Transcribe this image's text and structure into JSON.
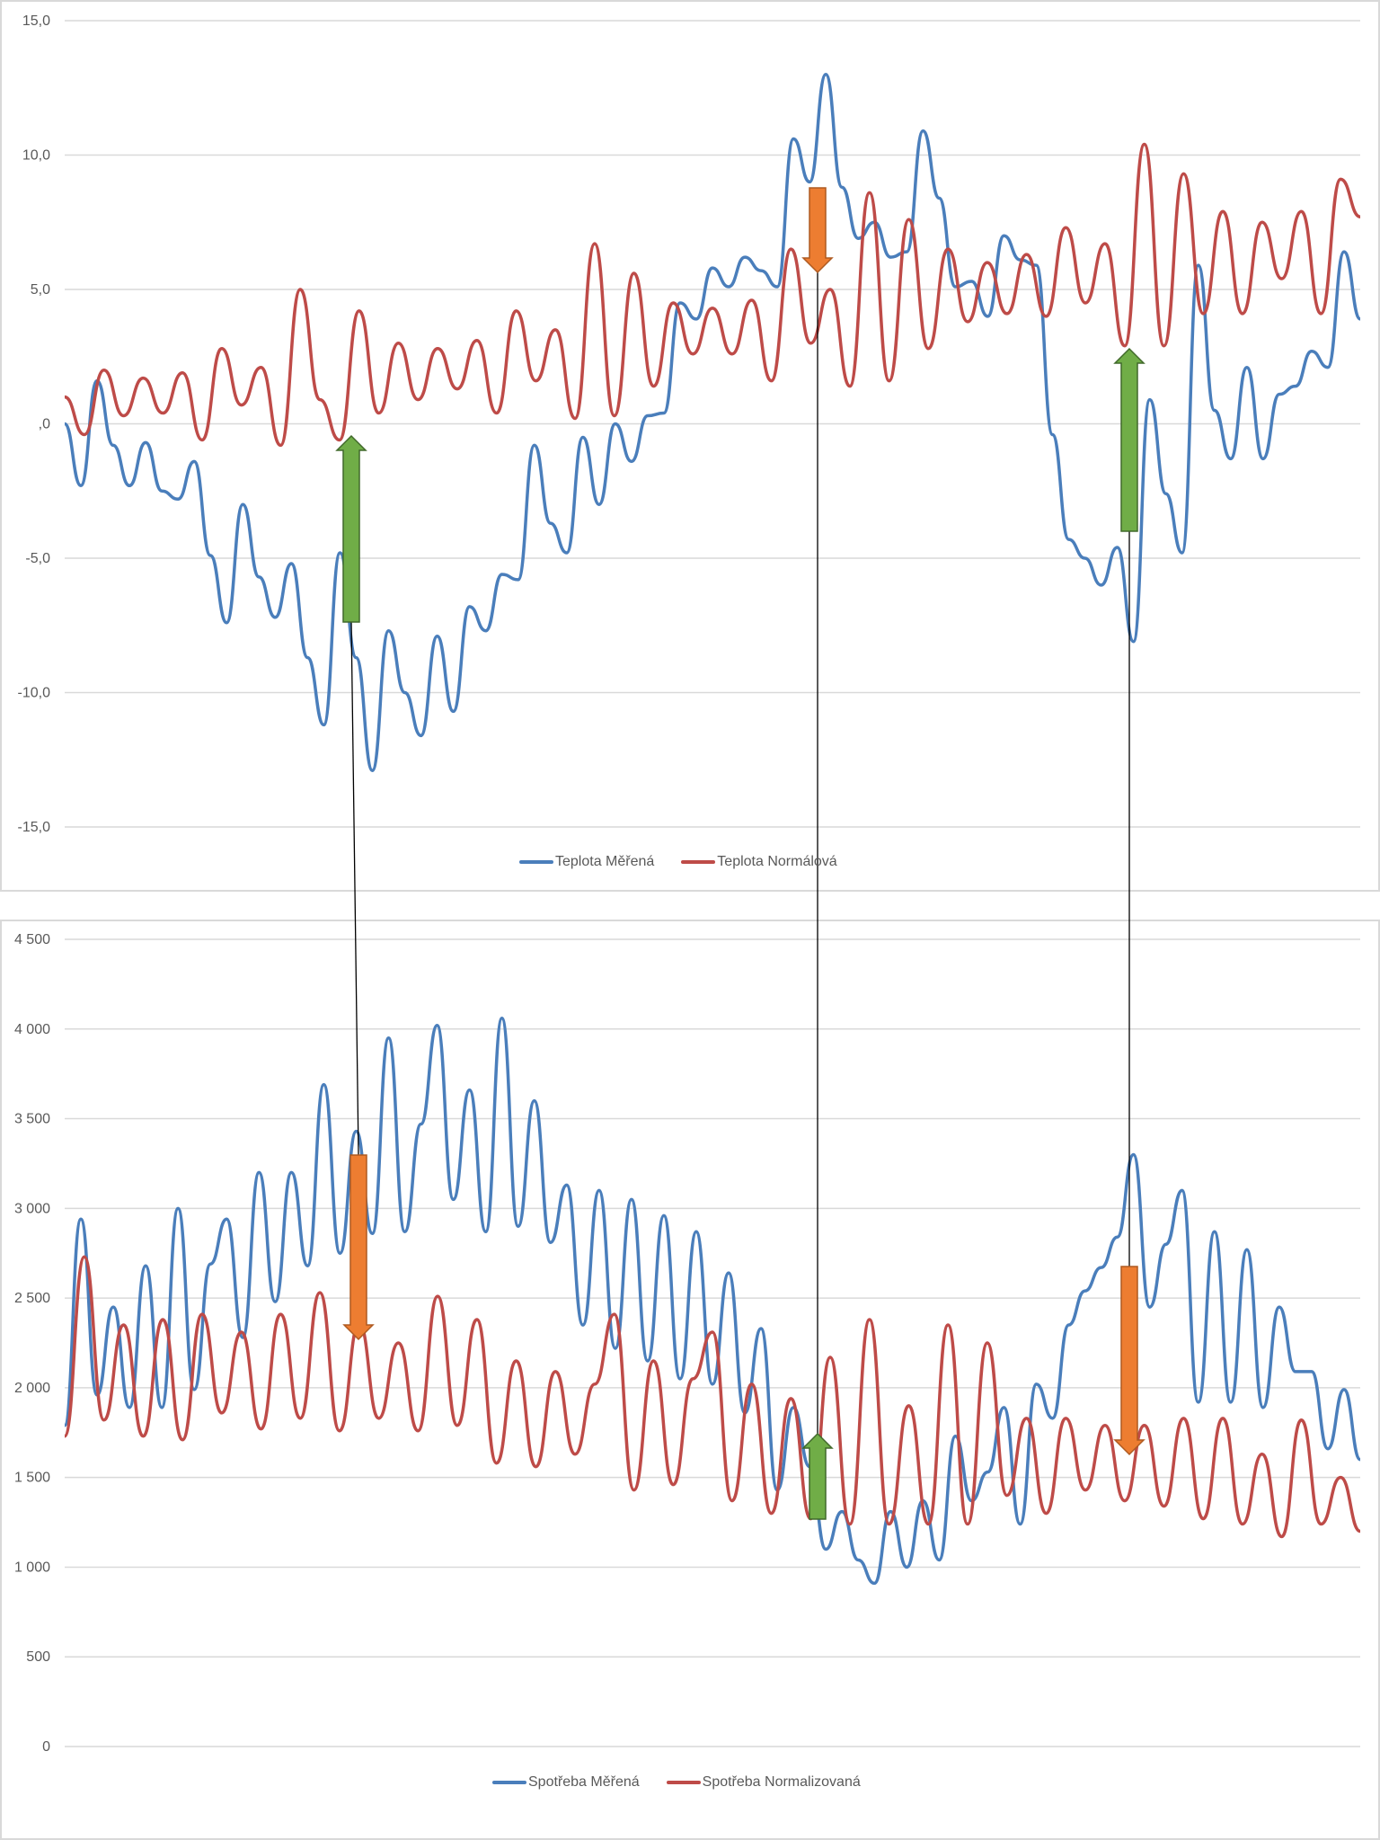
{
  "chart_data": [
    {
      "type": "line",
      "title": "",
      "xlabel": "",
      "ylabel": "",
      "ylim": [
        -15,
        15
      ],
      "yticks": [
        "15,0",
        "10,0",
        "5,0",
        ",0",
        "-5,0",
        "-10,0",
        "-15,0"
      ],
      "ytick_values": [
        15,
        10,
        5,
        0,
        -5,
        -10,
        -15
      ],
      "grid": true,
      "legend": "bottom",
      "series": [
        {
          "name": "Teplota Měřená",
          "color": "#4a7ebb",
          "values": [
            0,
            -2.3,
            1.6,
            -0.8,
            -2.3,
            -0.7,
            -2.5,
            -2.8,
            -1.4,
            -4.9,
            -7.4,
            -3,
            -5.7,
            -7.2,
            -5.2,
            -8.7,
            -11.2,
            -4.8,
            -8.7,
            -12.9,
            -7.7,
            -10,
            -11.6,
            -7.9,
            -10.7,
            -6.8,
            -7.7,
            -5.6,
            -5.8,
            -0.8,
            -3.7,
            -4.8,
            -0.5,
            -3,
            0,
            -1.4,
            0.3,
            0.4,
            4.5,
            3.9,
            5.8,
            5.1,
            6.2,
            5.7,
            5.1,
            10.6,
            9,
            13,
            8.8,
            6.9,
            7.5,
            6.2,
            6.4,
            10.9,
            8.4,
            5.1,
            5.3,
            4,
            7,
            6.1,
            5.9,
            -0.4,
            -4.3,
            -5,
            -6,
            -4.6,
            -8.1,
            0.9,
            -2.6,
            -4.8,
            5.9,
            0.5,
            -1.3,
            2.1,
            -1.3,
            1.1,
            1.4,
            2.7,
            2.1,
            6.4,
            3.9
          ]
        },
        {
          "name": "Teplota Normálová",
          "color": "#be4b48",
          "values": [
            1,
            -0.4,
            2,
            0.3,
            1.7,
            0.4,
            1.9,
            -0.6,
            2.8,
            0.7,
            2.1,
            -0.8,
            5,
            0.9,
            -0.6,
            4.2,
            0.4,
            3,
            0.9,
            2.8,
            1.3,
            3.1,
            0.4,
            4.2,
            1.6,
            3.5,
            0.2,
            6.7,
            0.3,
            5.6,
            1.4,
            4.5,
            2.6,
            4.3,
            2.6,
            4.6,
            1.6,
            6.5,
            3,
            5,
            1.4,
            8.6,
            1.6,
            7.6,
            2.8,
            6.5,
            3.8,
            6,
            4.1,
            6.3,
            4,
            7.3,
            4.5,
            6.7,
            2.9,
            10.4,
            2.9,
            9.3,
            4.1,
            7.9,
            4.1,
            7.5,
            5.4,
            7.9,
            4.1,
            9.1,
            7.7
          ]
        }
      ]
    },
    {
      "type": "line",
      "title": "",
      "xlabel": "",
      "ylabel": "",
      "ylim": [
        0,
        4500
      ],
      "yticks": [
        "4 500",
        "4 000",
        "3 500",
        "3 000",
        "2 500",
        "2 000",
        "1 500",
        "1 000",
        "500",
        "0"
      ],
      "ytick_values": [
        4500,
        4000,
        3500,
        3000,
        2500,
        2000,
        1500,
        1000,
        500,
        0
      ],
      "grid": true,
      "legend": "bottom",
      "series": [
        {
          "name": "Spotřeba Měřená",
          "color": "#4a7ebb",
          "values": [
            1790,
            2940,
            1960,
            2450,
            1890,
            2680,
            1890,
            3000,
            1990,
            2690,
            2940,
            2280,
            3200,
            2480,
            3200,
            2680,
            3690,
            2750,
            3430,
            2860,
            3950,
            2870,
            3470,
            4020,
            3050,
            3660,
            2870,
            4060,
            2900,
            3600,
            2810,
            3130,
            2350,
            3100,
            2220,
            3050,
            2150,
            2960,
            2050,
            2870,
            2020,
            2640,
            1860,
            2330,
            1430,
            1890,
            1560,
            1100,
            1310,
            1040,
            910,
            1310,
            1000,
            1370,
            1040,
            1730,
            1370,
            1530,
            1890,
            1240,
            2020,
            1830,
            2350,
            2540,
            2670,
            2840,
            3300,
            2450,
            2800,
            3100,
            1920,
            2870,
            1920,
            2770,
            1890,
            2450,
            2090,
            2090,
            1660,
            1990,
            1600
          ]
        },
        {
          "name": "Spotřeba Normalizovaná",
          "color": "#be4b48",
          "values": [
            1730,
            2730,
            1820,
            2350,
            1730,
            2380,
            1710,
            2410,
            1860,
            2310,
            1770,
            2410,
            1830,
            2530,
            1760,
            2360,
            1830,
            2250,
            1760,
            2510,
            1790,
            2380,
            1580,
            2150,
            1560,
            2090,
            1630,
            2020,
            2410,
            1430,
            2150,
            1460,
            2050,
            2310,
            1370,
            2020,
            1300,
            1940,
            1270,
            2170,
            1240,
            2380,
            1240,
            1900,
            1240,
            2350,
            1240,
            2250,
            1400,
            1830,
            1300,
            1830,
            1430,
            1790,
            1370,
            1790,
            1340,
            1830,
            1270,
            1830,
            1240,
            1630,
            1170,
            1820,
            1240,
            1500,
            1200
          ]
        }
      ]
    }
  ]
}
